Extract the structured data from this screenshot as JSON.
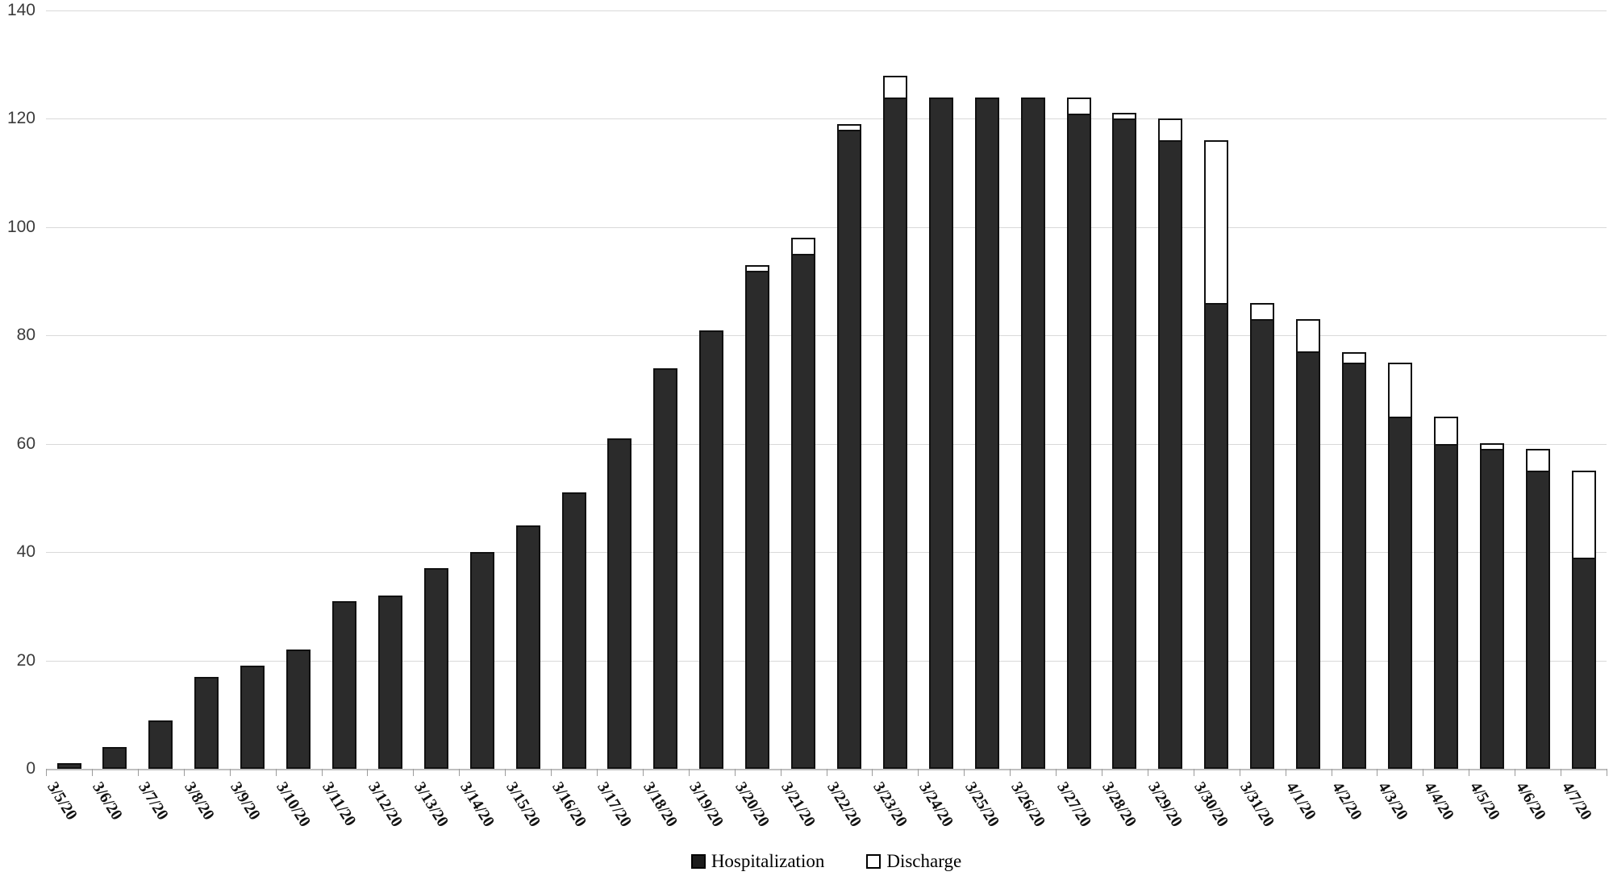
{
  "chart_data": {
    "type": "bar",
    "stacked": true,
    "title": "",
    "xlabel": "",
    "ylabel": "",
    "categories": [
      "3/5/20",
      "3/6/20",
      "3/7/20",
      "3/8/20",
      "3/9/20",
      "3/10/20",
      "3/11/20",
      "3/12/20",
      "3/13/20",
      "3/14/20",
      "3/15/20",
      "3/16/20",
      "3/17/20",
      "3/18/20",
      "3/19/20",
      "3/20/20",
      "3/21/20",
      "3/22/20",
      "3/23/20",
      "3/24/20",
      "3/25/20",
      "3/26/20",
      "3/27/20",
      "3/28/20",
      "3/29/20",
      "3/30/20",
      "3/31/20",
      "4/1/20",
      "4/2/20",
      "4/3/20",
      "4/4/20",
      "4/5/20",
      "4/6/20",
      "4/7/20"
    ],
    "series": [
      {
        "name": "Hospitalization",
        "values": [
          1,
          4,
          9,
          17,
          19,
          22,
          31,
          32,
          37,
          40,
          45,
          51,
          61,
          74,
          81,
          92,
          95,
          118,
          124,
          124,
          124,
          124,
          121,
          120,
          116,
          86,
          83,
          77,
          75,
          65,
          60,
          59,
          55,
          39
        ]
      },
      {
        "name": "Discharge",
        "values": [
          0,
          0,
          0,
          0,
          0,
          0,
          0,
          0,
          0,
          0,
          0,
          0,
          0,
          0,
          0,
          1,
          3,
          1,
          4,
          0,
          0,
          0,
          3,
          1,
          4,
          30,
          3,
          6,
          2,
          10,
          5,
          1,
          4,
          16
        ]
      }
    ],
    "ylim": [
      0,
      140
    ],
    "yticks": [
      0,
      20,
      40,
      60,
      80,
      100,
      120,
      140
    ],
    "grid": true,
    "legend_position": "bottom-center",
    "colors": {
      "hospitalization_fill": "#2b2b2b",
      "discharge_fill": "#ffffff",
      "bar_border": "#111111",
      "gridline": "#d9d9d9",
      "axis": "#bfbfbf"
    }
  },
  "legend": {
    "items": [
      {
        "label": "Hospitalization",
        "swatch": "filled-square"
      },
      {
        "label": "Discharge",
        "swatch": "open-square"
      }
    ]
  }
}
